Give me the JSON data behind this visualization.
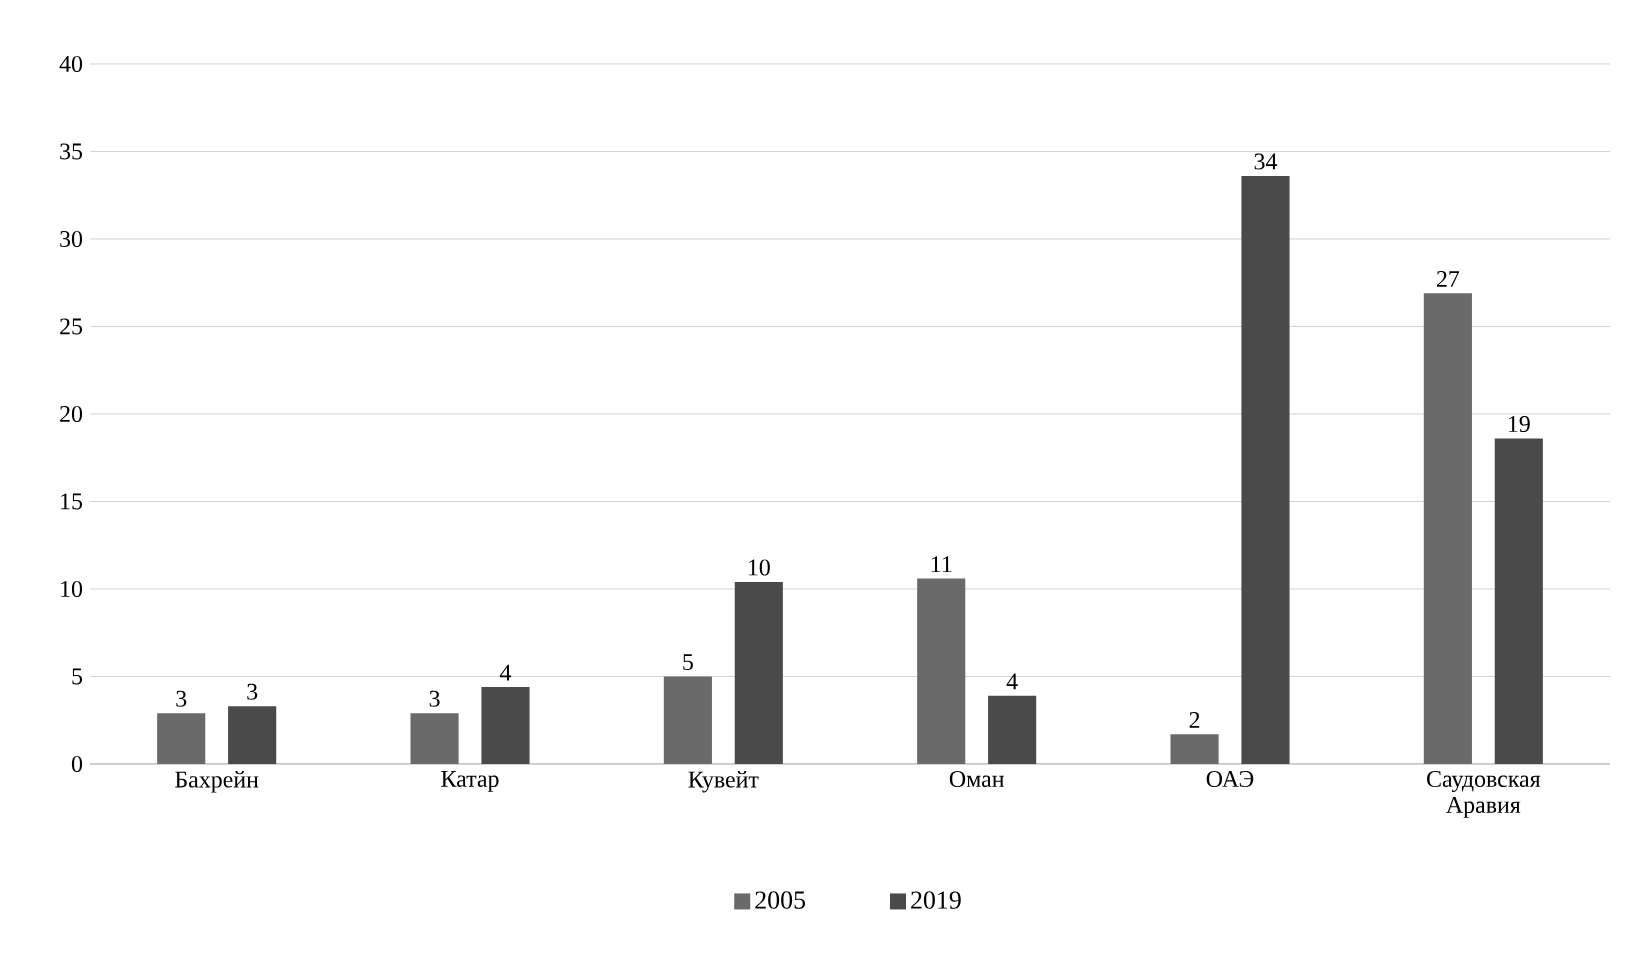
{
  "chart_data": {
    "type": "bar",
    "categories": [
      "Бахрейн",
      "Катар",
      "Кувейт",
      "Оман",
      "ОАЭ",
      "Саудовская Аравия"
    ],
    "series": [
      {
        "name": "2005",
        "color": "#6a6a6a",
        "values": [
          2.9,
          2.9,
          5.0,
          10.6,
          1.7,
          26.9
        ],
        "value_labels": [
          "3",
          "3",
          "5",
          "11",
          "2",
          "27"
        ]
      },
      {
        "name": "2019",
        "color": "#4a4a4a",
        "values": [
          3.3,
          4.4,
          10.4,
          3.9,
          33.6,
          18.6
        ],
        "value_labels": [
          "3",
          "4",
          "10",
          "4",
          "34",
          "19"
        ]
      }
    ],
    "ylim": [
      0,
      40
    ],
    "yticks": [
      0,
      5,
      10,
      15,
      20,
      25,
      30,
      35,
      40
    ],
    "grid": "y",
    "legend": "bottom"
  }
}
